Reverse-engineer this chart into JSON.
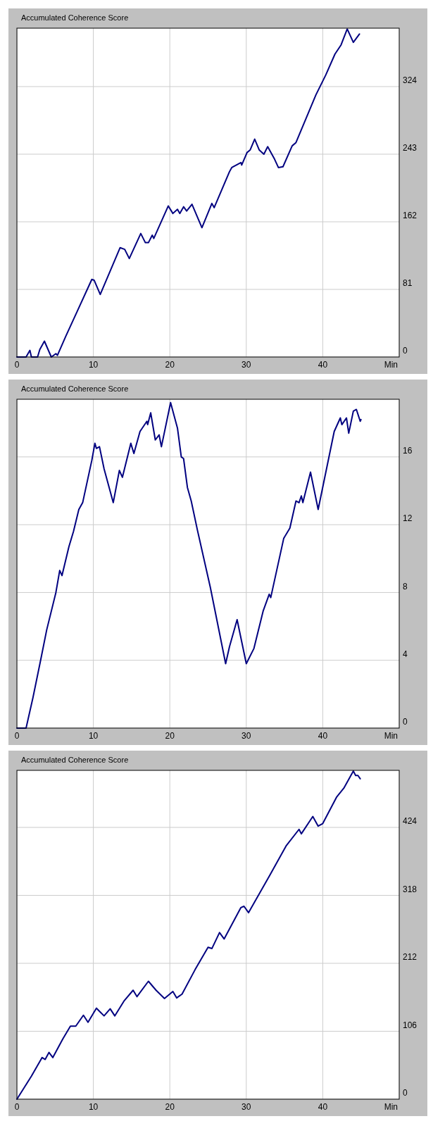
{
  "chart_data": [
    {
      "type": "line",
      "title": "Accumulated Coherence Score",
      "xlabel": "Min",
      "xlim": [
        0,
        50
      ],
      "xticks": [
        0,
        10,
        20,
        30,
        40
      ],
      "ylim": [
        0,
        394
      ],
      "yticks": [
        0,
        81,
        162,
        243,
        324
      ],
      "grid": true,
      "series": [
        {
          "color": "#000080",
          "x": [
            0,
            1.2,
            1.7,
            1.9,
            2.7,
            3.0,
            3.6,
            4.5,
            5.1,
            5.3,
            6.4,
            7.9,
            9.8,
            10.1,
            10.9,
            13.5,
            14.1,
            14.7,
            16.2,
            16.8,
            17.2,
            17.7,
            17.9,
            19.8,
            20.4,
            21.0,
            21.3,
            21.8,
            22.2,
            22.9,
            24.2,
            25.5,
            25.8,
            27.8,
            28.1,
            29.3,
            29.4,
            30.1,
            30.5,
            31.1,
            31.7,
            32.3,
            32.8,
            33.7,
            34.2,
            34.8,
            36.0,
            36.5,
            39.1,
            40.4,
            41.6,
            42.4,
            43.2,
            44.0,
            44.8
          ],
          "values": [
            0,
            0,
            8,
            0,
            0,
            9,
            19,
            0,
            4,
            2,
            25,
            55,
            93,
            92,
            75,
            131,
            129,
            118,
            148,
            137,
            137,
            146,
            142,
            181,
            172,
            177,
            172,
            180,
            175,
            183,
            155,
            184,
            179,
            222,
            227,
            233,
            230,
            245,
            248,
            261,
            248,
            243,
            252,
            237,
            227,
            228,
            253,
            257,
            314,
            338,
            363,
            374,
            393,
            377,
            387
          ]
        }
      ]
    },
    {
      "type": "line",
      "title": "Accumulated Coherence Score",
      "xlabel": "Min",
      "xlim": [
        0,
        50
      ],
      "xticks": [
        0,
        10,
        20,
        30,
        40
      ],
      "ylim": [
        0,
        19.4
      ],
      "yticks": [
        0,
        4,
        8,
        12,
        16
      ],
      "grid": true,
      "series": [
        {
          "color": "#000080",
          "x": [
            0,
            1.2,
            2.1,
            3.1,
            3.9,
            5.1,
            5.6,
            5.9,
            6.8,
            7.4,
            8.1,
            8.6,
            9.8,
            10.2,
            10.4,
            10.8,
            11.4,
            12.6,
            13.4,
            13.8,
            14.9,
            15.3,
            16.1,
            17.0,
            17.1,
            17.5,
            18.1,
            18.6,
            18.9,
            20.1,
            21.0,
            21.5,
            21.8,
            22.3,
            22.8,
            23.6,
            25.3,
            27.3,
            27.8,
            28.8,
            30.0,
            31.0,
            32.2,
            33.0,
            33.2,
            34.9,
            35.7,
            36.5,
            36.9,
            37.2,
            37.4,
            38.4,
            39.4,
            41.5,
            42.3,
            42.5,
            43.1,
            43.4,
            44.0,
            44.4,
            44.9,
            45.0
          ],
          "values": [
            0,
            0,
            1.8,
            4.0,
            5.8,
            8.0,
            9.3,
            9.0,
            10.7,
            11.6,
            12.9,
            13.3,
            15.8,
            16.8,
            16.5,
            16.6,
            15.3,
            13.3,
            15.2,
            14.8,
            16.8,
            16.2,
            17.5,
            18.1,
            17.9,
            18.6,
            17.0,
            17.3,
            16.6,
            19.2,
            17.7,
            16.0,
            15.9,
            14.2,
            13.4,
            11.7,
            8.3,
            3.8,
            4.8,
            6.4,
            3.8,
            4.7,
            6.9,
            7.9,
            7.7,
            11.2,
            11.8,
            13.4,
            13.3,
            13.7,
            13.3,
            15.1,
            12.9,
            17.5,
            18.3,
            17.9,
            18.3,
            17.4,
            18.7,
            18.8,
            18.1,
            18.2
          ]
        }
      ]
    },
    {
      "type": "line",
      "title": "Accumulated Coherence Score",
      "xlabel": "Min",
      "xlim": [
        0,
        50
      ],
      "xticks": [
        0,
        10,
        20,
        30,
        40
      ],
      "ylim": [
        0,
        513
      ],
      "yticks": [
        0,
        106,
        212,
        318,
        424
      ],
      "grid": true,
      "series": [
        {
          "color": "#000080",
          "x": [
            0,
            1.9,
            3.3,
            3.7,
            4.2,
            4.7,
            6.0,
            7.0,
            7.7,
            8.7,
            9.3,
            10.4,
            10.9,
            11.4,
            12.2,
            12.8,
            14.0,
            15.2,
            15.7,
            17.2,
            18.2,
            19.3,
            20.4,
            20.9,
            21.6,
            23.3,
            25.0,
            25.5,
            26.5,
            27.1,
            29.3,
            29.7,
            30.3,
            33.1,
            35.2,
            36.9,
            37.2,
            38.7,
            39.4,
            40.0,
            41.8,
            42.8,
            44.0,
            44.3,
            44.6,
            44.9
          ],
          "values": [
            0,
            36,
            65,
            62,
            73,
            65,
            94,
            114,
            114,
            131,
            120,
            142,
            136,
            130,
            141,
            130,
            153,
            170,
            160,
            184,
            170,
            157,
            168,
            158,
            164,
            202,
            237,
            235,
            260,
            250,
            299,
            301,
            291,
            350,
            395,
            421,
            414,
            441,
            426,
            430,
            471,
            486,
            512,
            505,
            505,
            500
          ]
        }
      ]
    }
  ]
}
